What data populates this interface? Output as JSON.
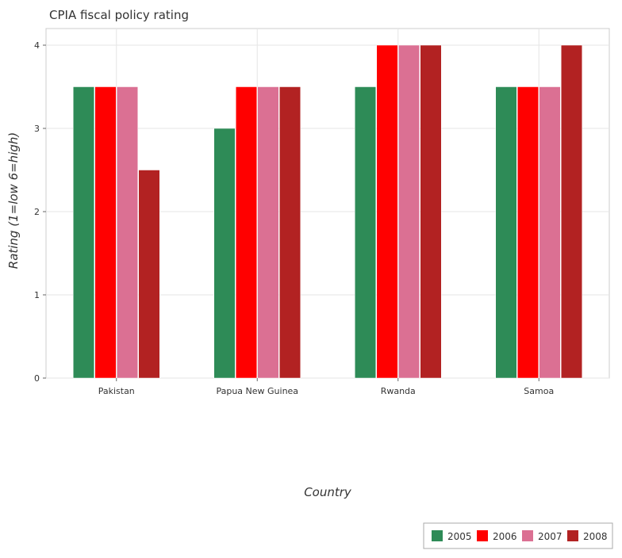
{
  "chart_data": {
    "type": "bar",
    "title": "CPIA fiscal policy rating",
    "xlabel": "Country",
    "ylabel": "Rating (1=low 6=high)",
    "categories": [
      "Pakistan",
      "Papua New Guinea",
      "Rwanda",
      "Samoa"
    ],
    "series": [
      {
        "name": "2005",
        "color": "#2e8b57",
        "values": [
          3.5,
          3.0,
          3.5,
          3.5
        ]
      },
      {
        "name": "2006",
        "color": "#ff0000",
        "values": [
          3.5,
          3.5,
          4.0,
          3.5
        ]
      },
      {
        "name": "2007",
        "color": "#db7093",
        "values": [
          3.5,
          3.5,
          4.0,
          3.5
        ]
      },
      {
        "name": "2008",
        "color": "#b22222",
        "values": [
          2.5,
          3.5,
          4.0,
          4.0
        ]
      }
    ],
    "ylim": [
      0,
      4.2
    ],
    "yticks": [
      "0",
      "1",
      "2",
      "3",
      "4"
    ],
    "grid": true,
    "legend_position": "bottom-right"
  }
}
